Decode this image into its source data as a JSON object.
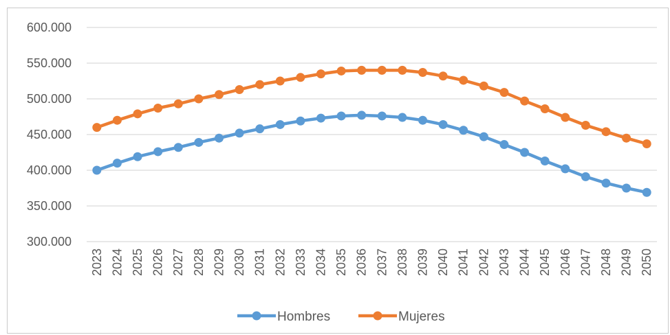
{
  "chart_data": {
    "type": "line",
    "title": "",
    "xlabel": "",
    "ylabel": "",
    "x": [
      2023,
      2024,
      2025,
      2026,
      2027,
      2028,
      2029,
      2030,
      2031,
      2032,
      2033,
      2034,
      2035,
      2036,
      2037,
      2038,
      2039,
      2040,
      2041,
      2042,
      2043,
      2044,
      2045,
      2046,
      2047,
      2048,
      2049,
      2050
    ],
    "ylim": [
      300000,
      600000
    ],
    "yticks": [
      300000,
      350000,
      400000,
      450000,
      500000,
      550000,
      600000
    ],
    "ytick_labels": [
      "300.000",
      "350.000",
      "400.000",
      "450.000",
      "500.000",
      "550.000",
      "600.000"
    ],
    "grid": true,
    "legend_position": "bottom",
    "series": [
      {
        "name": "Hombres",
        "color": "#5b9bd5",
        "values": [
          400000,
          410000,
          419000,
          426000,
          432000,
          439000,
          445000,
          452000,
          458000,
          464000,
          469000,
          473000,
          476000,
          477000,
          476000,
          474000,
          470000,
          464000,
          456000,
          447000,
          436000,
          425000,
          413000,
          402000,
          391000,
          382000,
          375000,
          369000
        ]
      },
      {
        "name": "Mujeres",
        "color": "#ed7d31",
        "values": [
          460000,
          470000,
          479000,
          487000,
          493000,
          500000,
          506000,
          513000,
          520000,
          525000,
          530000,
          535000,
          539000,
          540000,
          540000,
          540000,
          537000,
          532000,
          526000,
          518000,
          509000,
          497000,
          486000,
          474000,
          463000,
          454000,
          445000,
          437000
        ]
      }
    ]
  }
}
